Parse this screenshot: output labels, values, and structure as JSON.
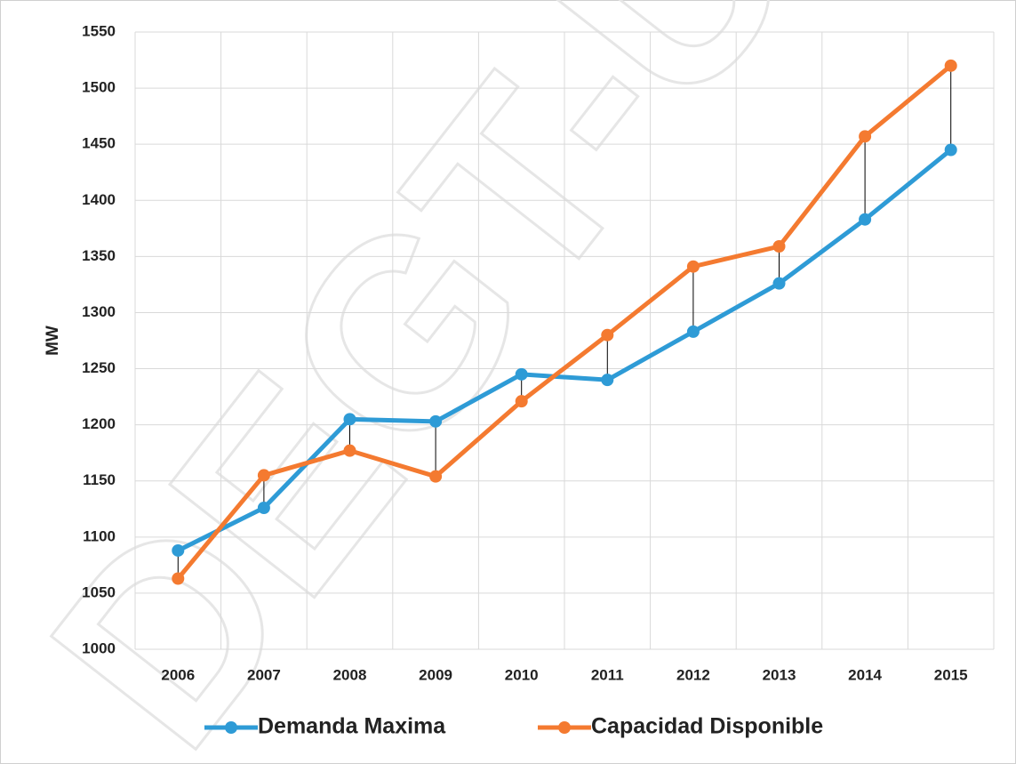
{
  "chart_data": {
    "type": "line",
    "watermark": "DEGT-UI",
    "y_label": "MW",
    "categories": [
      "2006",
      "2007",
      "2008",
      "2009",
      "2010",
      "2011",
      "2012",
      "2013",
      "2014",
      "2015"
    ],
    "series": [
      {
        "name": "Demanda Maxima",
        "color": "#2e9bd6",
        "values": [
          1088,
          1126,
          1205,
          1203,
          1245,
          1240,
          1283,
          1326,
          1383,
          1445
        ]
      },
      {
        "name": "Capacidad Disponible",
        "color": "#f47a30",
        "values": [
          1063,
          1155,
          1177,
          1154,
          1221,
          1280,
          1341,
          1359,
          1457,
          1520
        ]
      }
    ],
    "ylim": [
      1000,
      1550
    ],
    "yticks": [
      1000,
      1050,
      1100,
      1150,
      1200,
      1250,
      1300,
      1350,
      1400,
      1450,
      1500,
      1550
    ],
    "grid": true,
    "high_low_lines": true,
    "legend": "bottom"
  }
}
